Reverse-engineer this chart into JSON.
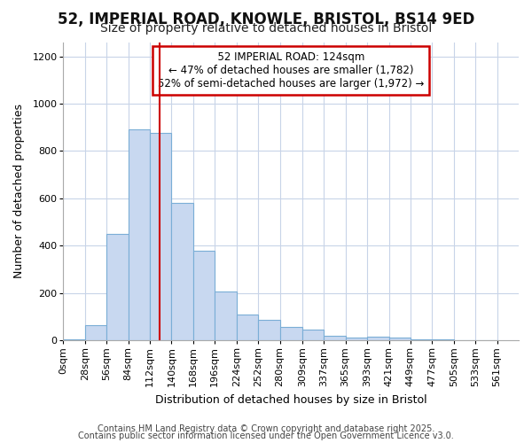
{
  "title_line1": "52, IMPERIAL ROAD, KNOWLE, BRISTOL, BS14 9ED",
  "title_line2": "Size of property relative to detached houses in Bristol",
  "xlabel": "Distribution of detached houses by size in Bristol",
  "ylabel": "Number of detached properties",
  "bar_edges": [
    0,
    28,
    56,
    84,
    112,
    140,
    168,
    196,
    224,
    252,
    280,
    309,
    337,
    365,
    393,
    421,
    449,
    477,
    505,
    533,
    561
  ],
  "bar_values": [
    5,
    65,
    450,
    890,
    875,
    580,
    380,
    205,
    110,
    85,
    55,
    45,
    18,
    12,
    15,
    10,
    4,
    3,
    2,
    2
  ],
  "bar_color": "#c8d8f0",
  "bar_edge_color": "#7aaed6",
  "property_size": 124,
  "vline_color": "#cc0000",
  "annotation_text": "  52 IMPERIAL ROAD: 124sqm  \n← 47% of detached houses are smaller (1,782)\n52% of semi-detached houses are larger (1,972) →",
  "annotation_box_color": "#ffffff",
  "annotation_box_edge": "#cc0000",
  "ylim": [
    0,
    1260
  ],
  "yticks": [
    0,
    200,
    400,
    600,
    800,
    1000,
    1200
  ],
  "bg_color": "#ffffff",
  "grid_color": "#c8d4e8",
  "footer_line1": "Contains HM Land Registry data © Crown copyright and database right 2025.",
  "footer_line2": "Contains public sector information licensed under the Open Government Licence v3.0.",
  "title_fontsize": 12,
  "subtitle_fontsize": 10,
  "axis_label_fontsize": 9,
  "tick_fontsize": 8,
  "annotation_fontsize": 8.5,
  "footer_fontsize": 7,
  "xlim_max": 589
}
